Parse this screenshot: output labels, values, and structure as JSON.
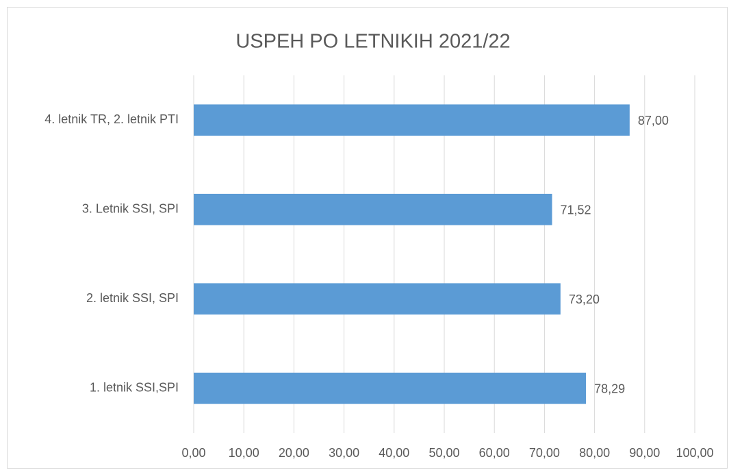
{
  "chart_data": {
    "type": "bar",
    "orientation": "horizontal",
    "title": "USPEH PO LETNIKIH 2021/22",
    "categories": [
      "1. letnik SSI,SPI",
      "2. letnik SSI, SPI",
      "3. Letnik SSI, SPI",
      "4. letnik TR, 2. letnik PTI"
    ],
    "values": [
      78.29,
      73.2,
      71.52,
      87.0
    ],
    "value_labels": [
      "78,29",
      "73,20",
      "71,52",
      "87,00"
    ],
    "color": "#5b9bd5",
    "xlim": [
      0,
      100
    ],
    "xticks": [
      {
        "value": 0,
        "label": "0,00"
      },
      {
        "value": 10,
        "label": "10,00"
      },
      {
        "value": 20,
        "label": "20,00"
      },
      {
        "value": 30,
        "label": "30,00"
      },
      {
        "value": 40,
        "label": "40,00"
      },
      {
        "value": 50,
        "label": "50,00"
      },
      {
        "value": 60,
        "label": "60,00"
      },
      {
        "value": 70,
        "label": "70,00"
      },
      {
        "value": 80,
        "label": "80,00"
      },
      {
        "value": 90,
        "label": "90,00"
      },
      {
        "value": 100,
        "label": "100,00"
      }
    ],
    "grid": true
  }
}
